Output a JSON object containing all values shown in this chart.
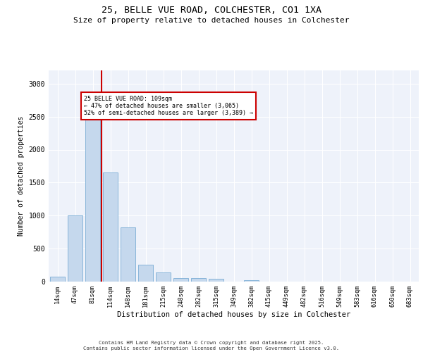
{
  "title_line1": "25, BELLE VUE ROAD, COLCHESTER, CO1 1XA",
  "title_line2": "Size of property relative to detached houses in Colchester",
  "xlabel": "Distribution of detached houses by size in Colchester",
  "ylabel": "Number of detached properties",
  "categories": [
    "14sqm",
    "47sqm",
    "81sqm",
    "114sqm",
    "148sqm",
    "181sqm",
    "215sqm",
    "248sqm",
    "282sqm",
    "315sqm",
    "349sqm",
    "382sqm",
    "415sqm",
    "449sqm",
    "482sqm",
    "516sqm",
    "549sqm",
    "583sqm",
    "616sqm",
    "650sqm",
    "683sqm"
  ],
  "values": [
    75,
    1000,
    2450,
    1650,
    820,
    260,
    140,
    50,
    50,
    40,
    0,
    20,
    0,
    0,
    0,
    0,
    0,
    0,
    0,
    0,
    0
  ],
  "bar_color": "#c5d8ed",
  "bar_edge_color": "#7aadd4",
  "vline_color": "#cc0000",
  "vline_x_index": 2.5,
  "annotation_text_line1": "25 BELLE VUE ROAD: 109sqm",
  "annotation_text_line2": "← 47% of detached houses are smaller (3,065)",
  "annotation_text_line3": "52% of semi-detached houses are larger (3,389) →",
  "annotation_box_color": "#cc0000",
  "ylim": [
    0,
    3200
  ],
  "yticks": [
    0,
    500,
    1000,
    1500,
    2000,
    2500,
    3000
  ],
  "background_color": "#eef2fa",
  "grid_color": "#ffffff",
  "footer_line1": "Contains HM Land Registry data © Crown copyright and database right 2025.",
  "footer_line2": "Contains public sector information licensed under the Open Government Licence v3.0."
}
